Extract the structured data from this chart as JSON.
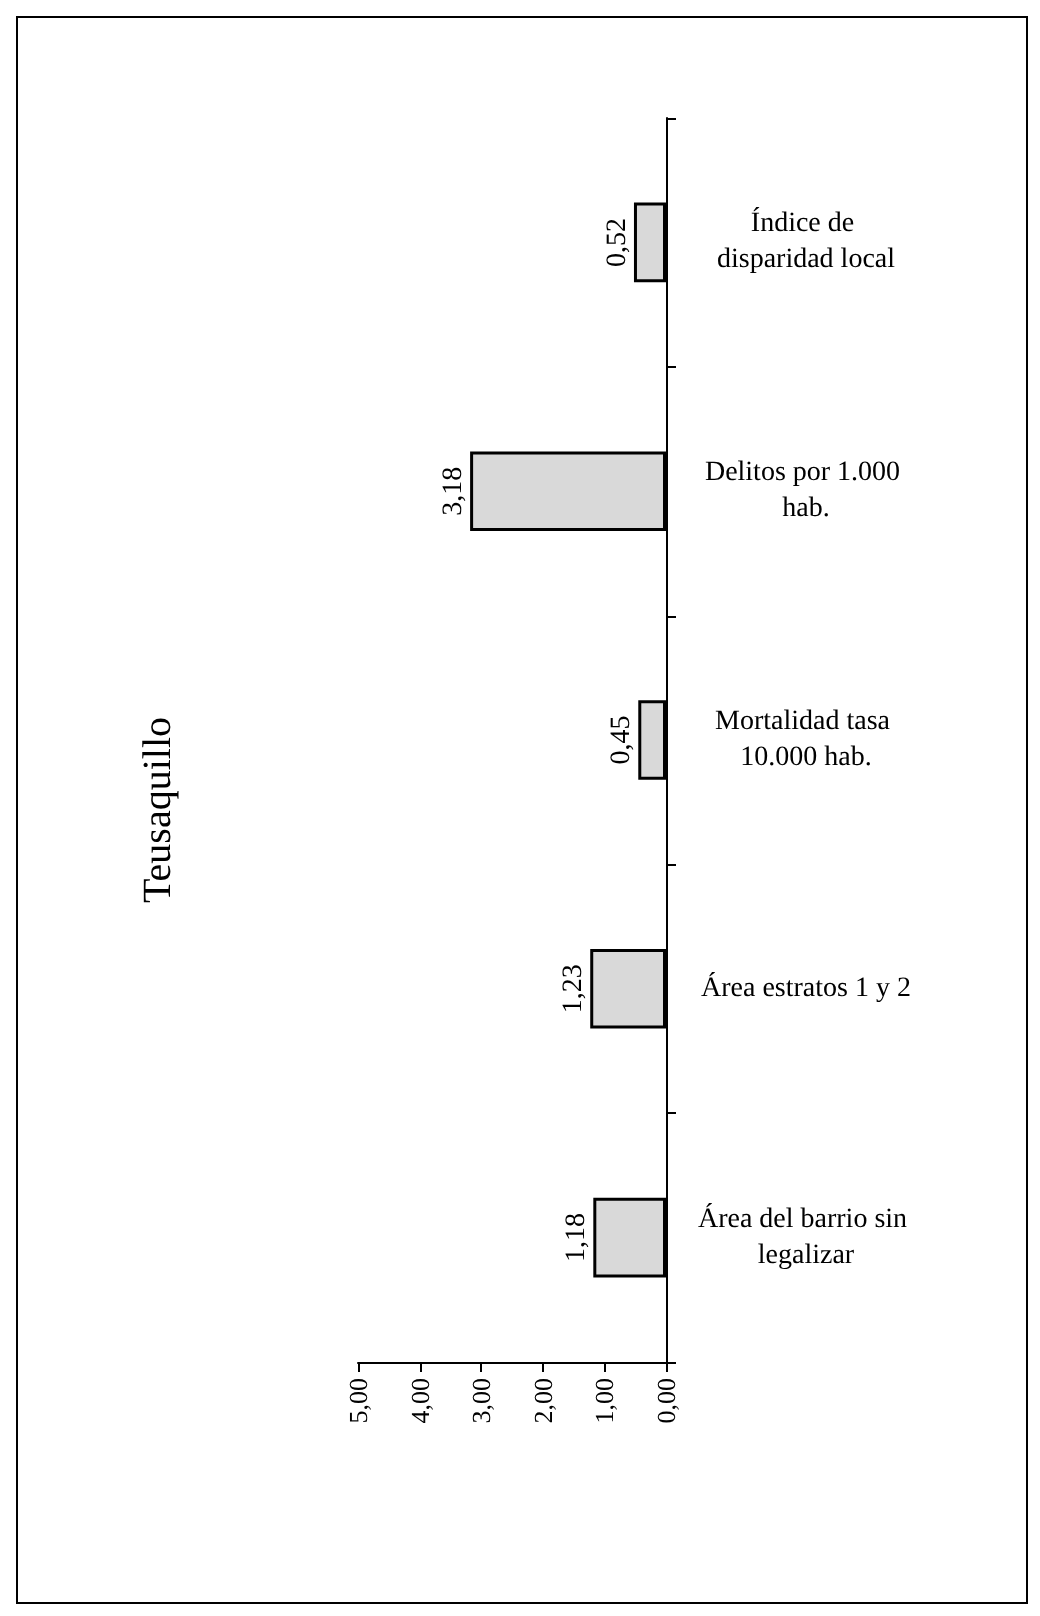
{
  "chart_data": {
    "type": "bar",
    "orientation": "horizontal",
    "title": "Teusaquillo",
    "categories": [
      "Índice de disparidad local",
      "Delitos por 1.000 hab.",
      "Mortalidad tasa 10.000 hab.",
      "Área estratos 1 y 2",
      "Área del barrio sin legalizar"
    ],
    "values": [
      0.52,
      3.18,
      0.45,
      1.23,
      1.18
    ],
    "value_labels": [
      "0,52",
      "3,18",
      "0,45",
      "1,23",
      "1,18"
    ],
    "color": "#d9d9d9",
    "xlim": [
      5,
      0
    ],
    "xticks": [
      {
        "value": 5,
        "label": "5,00"
      },
      {
        "value": 4,
        "label": "4,00"
      },
      {
        "value": 3,
        "label": "3,00"
      },
      {
        "value": 2,
        "label": "2,00"
      },
      {
        "value": 1,
        "label": "1,00"
      },
      {
        "value": 0,
        "label": "0,00"
      }
    ]
  }
}
